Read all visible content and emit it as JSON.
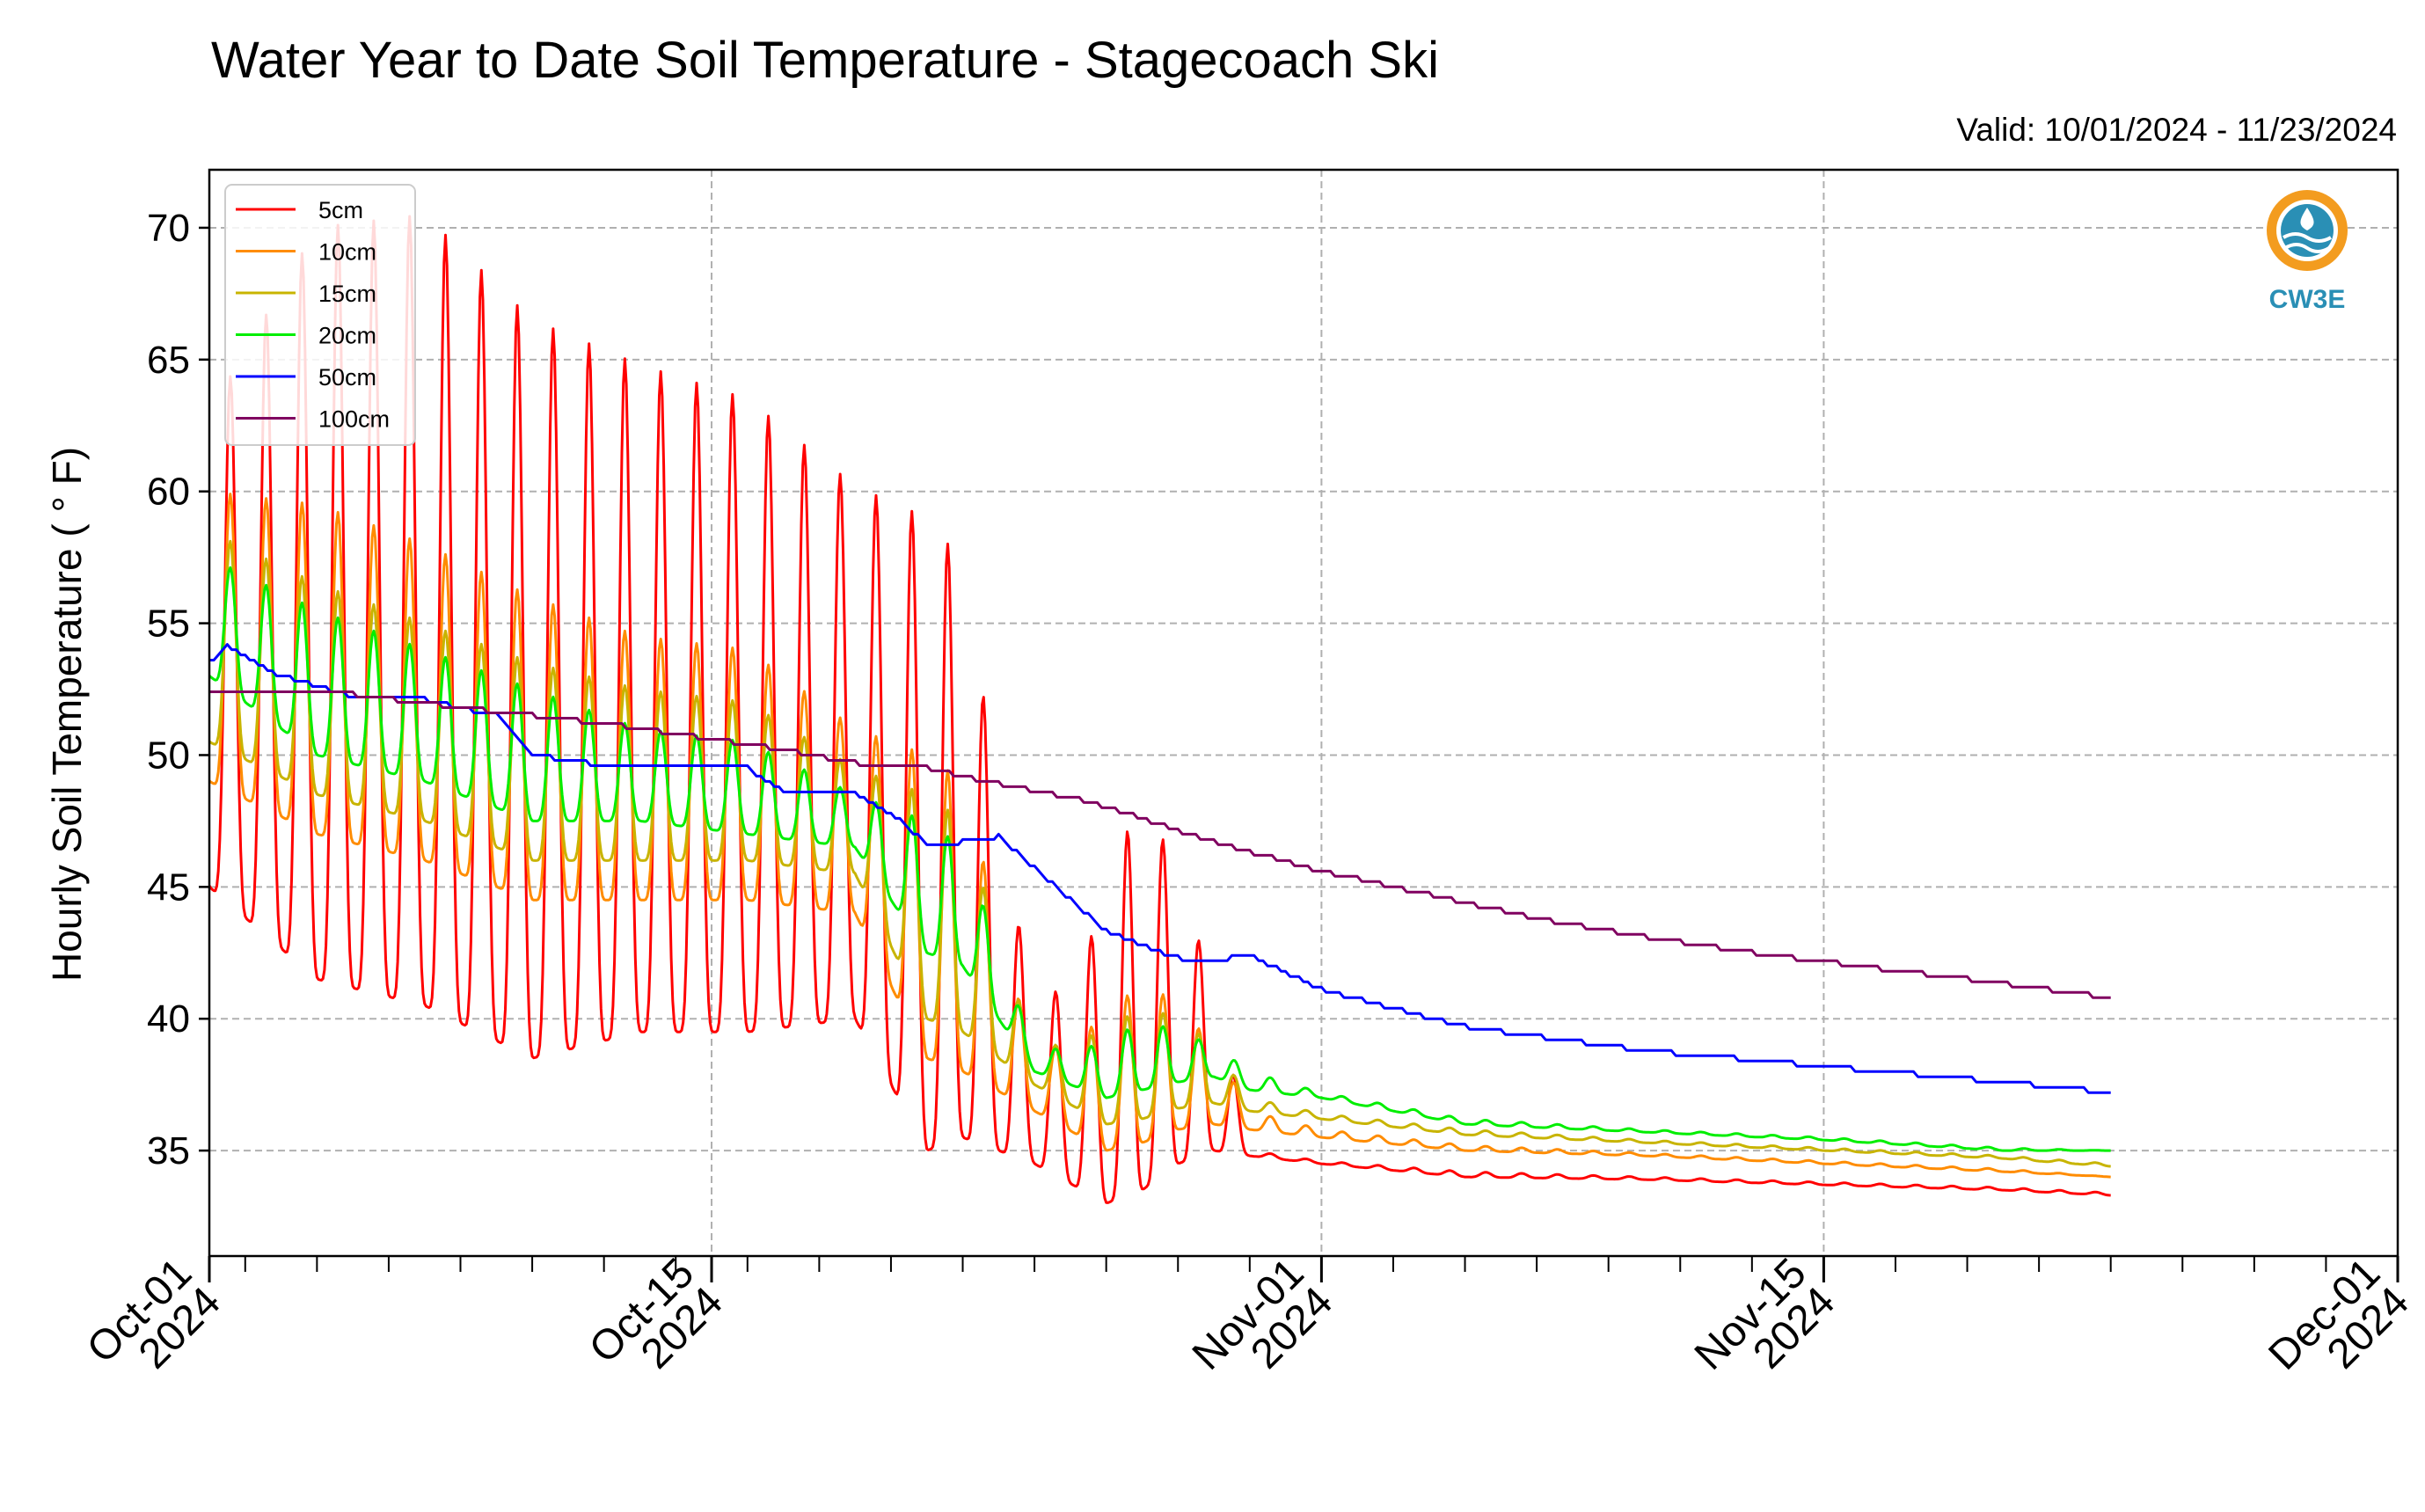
{
  "chart_data": {
    "type": "line",
    "title": "Water Year to Date Soil Temperature - Stagecoach Ski",
    "subtitle": "Valid: 10/01/2024 - 11/23/2024",
    "xlabel": "",
    "ylabel": "Hourly Soil Temperature ( ° F)",
    "xlim": [
      "2024-10-01",
      "2024-12-01"
    ],
    "ylim": [
      31,
      72.2
    ],
    "yticks": [
      35,
      40,
      45,
      50,
      55,
      60,
      65,
      70
    ],
    "xticks": [
      {
        "date": "2024-10-01",
        "label": [
          "Oct-01",
          "2024"
        ]
      },
      {
        "date": "2024-10-15",
        "label": [
          "Oct-15",
          "2024"
        ]
      },
      {
        "date": "2024-11-01",
        "label": [
          "Nov-01",
          "2024"
        ]
      },
      {
        "date": "2024-11-15",
        "label": [
          "Nov-15",
          "2024"
        ]
      },
      {
        "date": "2024-12-01",
        "label": [
          "Dec-01",
          "2024"
        ]
      }
    ],
    "grid": true,
    "legend_position": "top-left",
    "logo": {
      "label": "CW3E"
    },
    "colors": {
      "accent": "#2a8fb5",
      "logo_orange": "#f39c1f",
      "grid": "#b0b0b0"
    },
    "series": [
      {
        "name": "5cm",
        "color": "#ff0000",
        "mode": "diurnal",
        "x": [
          "2024-10-01",
          "2024-10-04",
          "2024-10-07",
          "2024-10-10",
          "2024-10-13",
          "2024-10-16",
          "2024-10-19",
          "2024-10-21",
          "2024-10-22",
          "2024-10-24",
          "2024-10-26",
          "2024-10-27",
          "2024-10-28",
          "2024-10-29",
          "2024-10-30",
          "2024-11-01",
          "2024-11-05",
          "2024-11-10",
          "2024-11-15",
          "2024-11-20",
          "2024-11-23"
        ],
        "min": [
          45,
          41.5,
          40.5,
          38.5,
          39.5,
          39.5,
          40.0,
          35.0,
          35.5,
          34.5,
          33.0,
          33.5,
          34.5,
          35.0,
          34.8,
          34.5,
          34.0,
          33.9,
          33.7,
          33.5,
          33.3
        ],
        "max": [
          63,
          70,
          70.5,
          66.5,
          64.8,
          63.5,
          60.2,
          59.0,
          57.3,
          39.8,
          44.0,
          49.3,
          45.0,
          41.5,
          35.0,
          34.6,
          34.2,
          34.0,
          33.8,
          33.6,
          33.4
        ]
      },
      {
        "name": "10cm",
        "color": "#ff8c00",
        "mode": "diurnal",
        "x": [
          "2024-10-01",
          "2024-10-04",
          "2024-10-07",
          "2024-10-10",
          "2024-10-13",
          "2024-10-16",
          "2024-10-19",
          "2024-10-21",
          "2024-10-22",
          "2024-10-24",
          "2024-10-26",
          "2024-10-27",
          "2024-10-28",
          "2024-10-29",
          "2024-10-30",
          "2024-11-01",
          "2024-11-05",
          "2024-11-10",
          "2024-11-15",
          "2024-11-20",
          "2024-11-23"
        ],
        "min": [
          49,
          47.0,
          46.0,
          44.5,
          44.5,
          44.5,
          44.0,
          38.5,
          38.0,
          36.5,
          35.0,
          35.3,
          35.8,
          36.0,
          35.8,
          35.5,
          35.0,
          34.8,
          34.5,
          34.2,
          34.0
        ],
        "max": [
          60,
          59.5,
          58.0,
          56.0,
          54.5,
          54.0,
          51.0,
          50.0,
          49.0,
          38.5,
          40.0,
          41.5,
          40.5,
          39.0,
          36.5,
          35.8,
          35.2,
          34.9,
          34.6,
          34.3,
          34.0
        ]
      },
      {
        "name": "15cm",
        "color": "#c8b400",
        "mode": "diurnal",
        "x": [
          "2024-10-01",
          "2024-10-04",
          "2024-10-07",
          "2024-10-10",
          "2024-10-13",
          "2024-10-16",
          "2024-10-19",
          "2024-10-21",
          "2024-10-22",
          "2024-10-24",
          "2024-10-26",
          "2024-10-27",
          "2024-10-28",
          "2024-10-29",
          "2024-10-30",
          "2024-11-01",
          "2024-11-05",
          "2024-11-10",
          "2024-11-15",
          "2024-11-20",
          "2024-11-23"
        ],
        "min": [
          50.5,
          48.5,
          47.5,
          46.0,
          46.0,
          46.0,
          45.5,
          40.0,
          39.5,
          37.5,
          36.0,
          36.2,
          36.6,
          36.8,
          36.5,
          36.2,
          35.6,
          35.3,
          35.0,
          34.7,
          34.4
        ],
        "max": [
          58.5,
          56.5,
          55.0,
          53.5,
          52.5,
          52.0,
          49.5,
          48.5,
          47.5,
          38.8,
          39.5,
          40.5,
          40.0,
          39.0,
          37.0,
          36.4,
          35.8,
          35.4,
          35.1,
          34.8,
          34.5
        ]
      },
      {
        "name": "20cm",
        "color": "#00ee00",
        "mode": "diurnal",
        "x": [
          "2024-10-01",
          "2024-10-04",
          "2024-10-07",
          "2024-10-10",
          "2024-10-13",
          "2024-10-16",
          "2024-10-19",
          "2024-10-21",
          "2024-10-22",
          "2024-10-24",
          "2024-10-26",
          "2024-10-27",
          "2024-10-28",
          "2024-10-29",
          "2024-10-30",
          "2024-11-01",
          "2024-11-05",
          "2024-11-10",
          "2024-11-15",
          "2024-11-20",
          "2024-11-23"
        ],
        "min": [
          53,
          50.0,
          49.0,
          47.5,
          47.5,
          47.0,
          46.5,
          42.5,
          42.0,
          38.0,
          37.0,
          37.3,
          37.6,
          37.8,
          37.3,
          37.0,
          36.0,
          35.7,
          35.4,
          35.0,
          35.0
        ],
        "max": [
          57.5,
          55.5,
          54.0,
          52.5,
          51.0,
          50.5,
          48.5,
          47.5,
          46.5,
          38.8,
          39.0,
          40.0,
          39.5,
          39.0,
          38.0,
          37.2,
          36.2,
          35.8,
          35.5,
          35.1,
          35.0
        ]
      },
      {
        "name": "50cm",
        "color": "#0000ff",
        "mode": "smooth",
        "x": [
          "2024-10-01",
          "2024-10-01T12",
          "2024-10-03",
          "2024-10-05",
          "2024-10-07",
          "2024-10-09",
          "2024-10-10",
          "2024-10-12",
          "2024-10-14",
          "2024-10-16",
          "2024-10-17",
          "2024-10-18",
          "2024-10-19",
          "2024-10-20",
          "2024-10-21",
          "2024-10-22",
          "2024-10-23",
          "2024-10-25",
          "2024-10-26",
          "2024-10-28",
          "2024-10-29",
          "2024-10-30",
          "2024-11-01",
          "2024-11-05",
          "2024-11-10",
          "2024-11-15",
          "2024-11-20",
          "2024-11-23"
        ],
        "y": [
          53.5,
          54.1,
          53.0,
          52.2,
          52.1,
          51.5,
          50.0,
          49.6,
          49.6,
          49.5,
          48.6,
          48.6,
          48.5,
          47.8,
          46.6,
          46.7,
          46.9,
          44.5,
          43.3,
          42.3,
          42.2,
          42.4,
          41.1,
          39.7,
          38.8,
          38.2,
          37.6,
          37.2
        ]
      },
      {
        "name": "100cm",
        "color": "#800060",
        "mode": "smooth",
        "x": [
          "2024-10-01",
          "2024-10-05",
          "2024-10-08",
          "2024-10-10",
          "2024-10-12",
          "2024-10-15",
          "2024-10-17",
          "2024-10-19",
          "2024-10-21",
          "2024-10-23",
          "2024-10-25",
          "2024-10-27",
          "2024-10-29",
          "2024-11-01",
          "2024-11-04",
          "2024-11-07",
          "2024-11-10",
          "2024-11-13",
          "2024-11-16",
          "2024-11-19",
          "2024-11-23"
        ],
        "y": [
          52.3,
          52.3,
          51.8,
          51.5,
          51.2,
          50.6,
          50.2,
          49.7,
          49.5,
          48.9,
          48.4,
          47.6,
          46.7,
          45.6,
          44.7,
          43.8,
          43.1,
          42.5,
          42.0,
          41.5,
          40.8
        ]
      }
    ]
  }
}
